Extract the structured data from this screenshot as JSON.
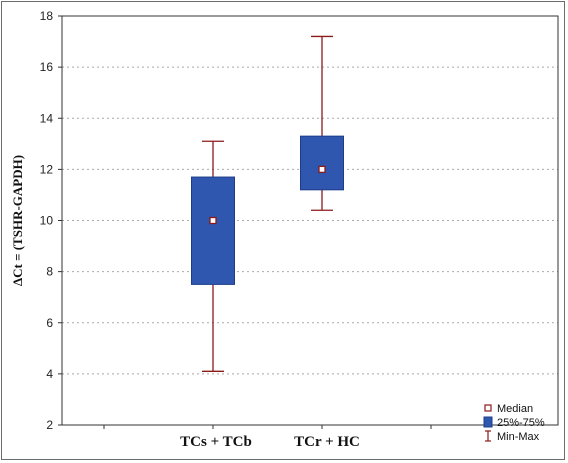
{
  "chart_data": {
    "type": "box",
    "title": "",
    "xlabel": "",
    "ylabel": "ΔCt = (TSHR-GAPDH)",
    "ylim": [
      2,
      18
    ],
    "yticks": [
      2,
      4,
      6,
      8,
      10,
      12,
      14,
      16,
      18
    ],
    "grid": true,
    "grid_style": "dotted-horizontal",
    "legend_position": "bottom-right",
    "categories": [
      "TCs + TCb",
      "TCr + HC"
    ],
    "boxes": [
      {
        "category": "TCs + TCb",
        "min": 4.1,
        "q1": 7.5,
        "median": 10.0,
        "q3": 11.7,
        "max": 13.1
      },
      {
        "category": "TCr + HC",
        "min": 10.4,
        "q1": 11.2,
        "median": 12.0,
        "q3": 13.3,
        "max": 17.2
      }
    ],
    "legend": [
      {
        "key": "median",
        "label": "Median"
      },
      {
        "key": "box",
        "label": "25%-75%"
      },
      {
        "key": "whisker",
        "label": "Min-Max"
      }
    ],
    "colors": {
      "box_fill": "#2f57b0",
      "box_stroke": "#1e3c8a",
      "whisker": "#8b1a1a",
      "median_stroke": "#8b1a1a",
      "median_fill": "#ffffff",
      "grid": "#a9a9a9",
      "axis": "#333333"
    }
  }
}
